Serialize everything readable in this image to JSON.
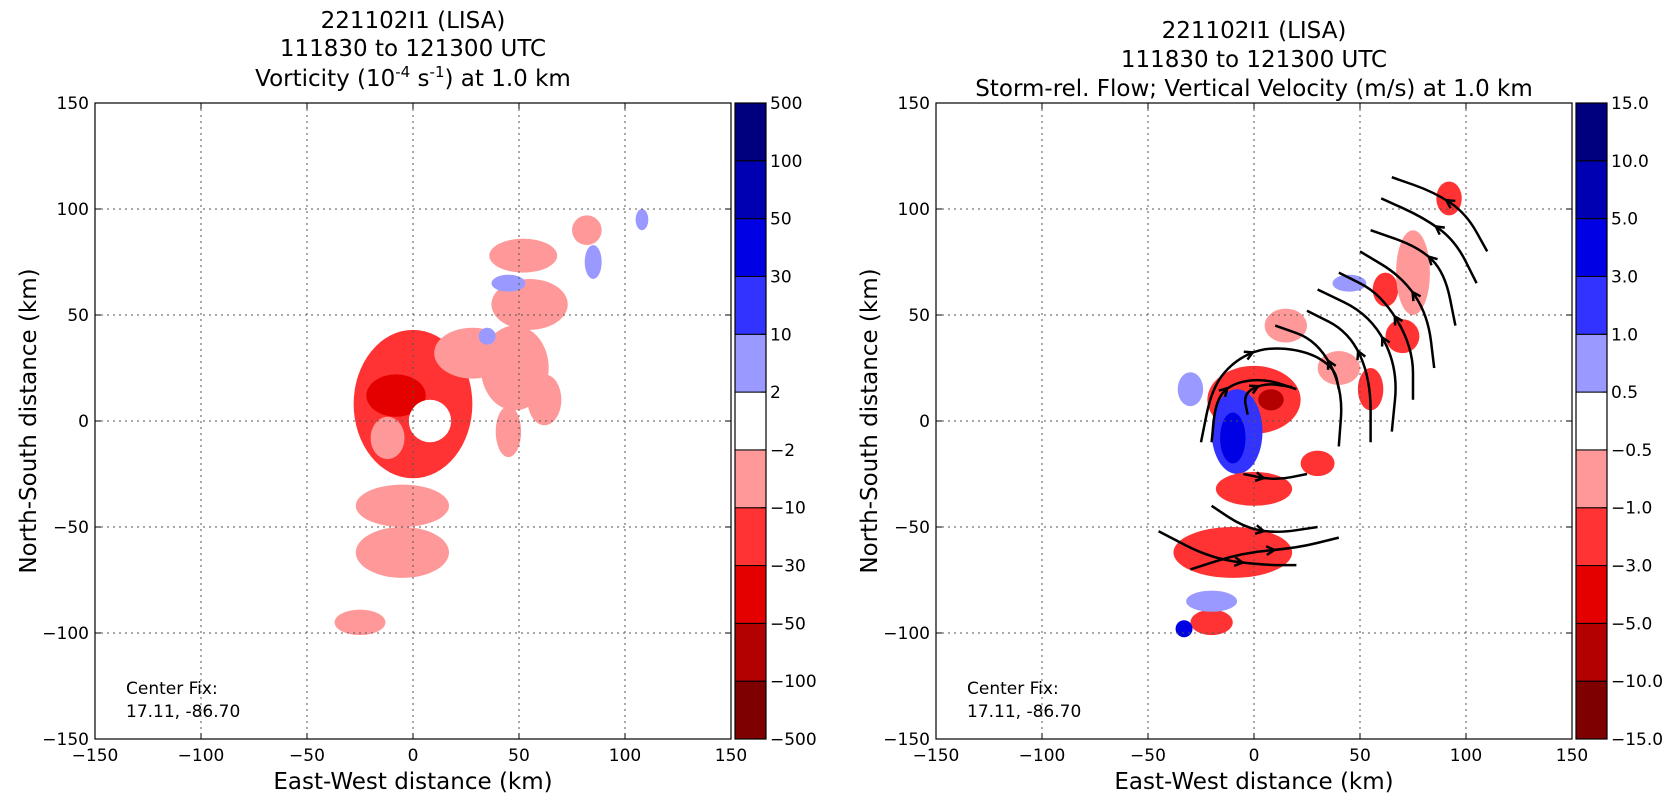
{
  "chart_data": [
    {
      "type": "heatmap",
      "title_lines": [
        "221102I1 (LISA)",
        "111830 to 121300 UTC"
      ],
      "title_var": {
        "pre": "Vorticity (10",
        "exp1": "-4",
        "mid": " s",
        "exp2": "-1",
        "post": ") at 1.0 km"
      },
      "xlabel": "East-West distance (km)",
      "ylabel": "North-South distance (km)",
      "xlim": [
        -150,
        150
      ],
      "ylim": [
        -150,
        150
      ],
      "xticks": [
        -150,
        -100,
        -50,
        0,
        50,
        100,
        150
      ],
      "yticks": [
        -150,
        -100,
        -50,
        0,
        50,
        100,
        150
      ],
      "tick_labels": [
        "−150",
        "−100",
        "−50",
        "0",
        "50",
        "100",
        "150"
      ],
      "grid": true,
      "annotation": [
        "Center Fix:",
        "17.11, -86.70"
      ],
      "colorbar": {
        "levels": [
          "500",
          "100",
          "50",
          "30",
          "10",
          "2",
          "−2",
          "−10",
          "−30",
          "−50",
          "−100",
          "−500"
        ],
        "colors": [
          "#7f0000",
          "#b30000",
          "#e50000",
          "#ff3333",
          "#ff9999",
          "#ffffff",
          "#9999ff",
          "#3333ff",
          "#0000e5",
          "#0000b3",
          "#00007f"
        ]
      },
      "features": [
        {
          "kind": "blob",
          "x": 0,
          "y": 8,
          "rx": 28,
          "ry": 35,
          "level": 3
        },
        {
          "kind": "blob",
          "x": -8,
          "y": 12,
          "rx": 14,
          "ry": 10,
          "level": 2
        },
        {
          "kind": "blob",
          "x": 8,
          "y": 0,
          "rx": 10,
          "ry": 10,
          "level": 5
        },
        {
          "kind": "blob",
          "x": -12,
          "y": -8,
          "rx": 8,
          "ry": 10,
          "level": 4
        },
        {
          "kind": "blob",
          "x": 28,
          "y": 32,
          "rx": 18,
          "ry": 12,
          "level": 4
        },
        {
          "kind": "blob",
          "x": 48,
          "y": 25,
          "rx": 16,
          "ry": 20,
          "level": 4
        },
        {
          "kind": "blob",
          "x": 55,
          "y": 55,
          "rx": 18,
          "ry": 12,
          "level": 4
        },
        {
          "kind": "blob",
          "x": 52,
          "y": 78,
          "rx": 16,
          "ry": 8,
          "level": 4
        },
        {
          "kind": "blob",
          "x": 82,
          "y": 90,
          "rx": 7,
          "ry": 7,
          "level": 4
        },
        {
          "kind": "blob",
          "x": 45,
          "y": -5,
          "rx": 6,
          "ry": 12,
          "level": 4
        },
        {
          "kind": "blob",
          "x": 62,
          "y": 10,
          "rx": 8,
          "ry": 12,
          "level": 4
        },
        {
          "kind": "blob",
          "x": -5,
          "y": -40,
          "rx": 22,
          "ry": 10,
          "level": 4
        },
        {
          "kind": "blob",
          "x": -5,
          "y": -62,
          "rx": 22,
          "ry": 12,
          "level": 4
        },
        {
          "kind": "blob",
          "x": -25,
          "y": -95,
          "rx": 12,
          "ry": 6,
          "level": 4
        },
        {
          "kind": "blob",
          "x": 45,
          "y": 65,
          "rx": 8,
          "ry": 4,
          "level": 6
        },
        {
          "kind": "blob",
          "x": 85,
          "y": 75,
          "rx": 4,
          "ry": 8,
          "level": 6
        },
        {
          "kind": "blob",
          "x": 35,
          "y": 40,
          "rx": 4,
          "ry": 4,
          "level": 6
        },
        {
          "kind": "blob",
          "x": 108,
          "y": 95,
          "rx": 3,
          "ry": 5,
          "level": 6
        }
      ]
    },
    {
      "type": "heatmap",
      "title_lines": [
        "221102I1 (LISA)",
        "111830 to 121300 UTC",
        "Storm-rel. Flow; Vertical Velocity (m/s) at 1.0 km"
      ],
      "xlabel": "East-West distance (km)",
      "ylabel": "North-South distance (km)",
      "xlim": [
        -150,
        150
      ],
      "ylim": [
        -150,
        150
      ],
      "xticks": [
        -150,
        -100,
        -50,
        0,
        50,
        100,
        150
      ],
      "yticks": [
        -150,
        -100,
        -50,
        0,
        50,
        100,
        150
      ],
      "tick_labels": [
        "−150",
        "−100",
        "−50",
        "0",
        "50",
        "100",
        "150"
      ],
      "grid": true,
      "annotation": [
        "Center Fix:",
        "17.11, -86.70"
      ],
      "colorbar": {
        "levels": [
          "15.0",
          "10.0",
          "5.0",
          "3.0",
          "1.0",
          "0.5",
          "−0.5",
          "−1.0",
          "−3.0",
          "−5.0",
          "−10.0",
          "−15.0"
        ],
        "colors": [
          "#7f0000",
          "#b30000",
          "#e50000",
          "#ff3333",
          "#ff9999",
          "#ffffff",
          "#9999ff",
          "#3333ff",
          "#0000e5",
          "#0000b3",
          "#00007f"
        ]
      },
      "features": [
        {
          "kind": "blob",
          "x": 0,
          "y": 10,
          "rx": 22,
          "ry": 16,
          "level": 3
        },
        {
          "kind": "blob",
          "x": 8,
          "y": 10,
          "rx": 6,
          "ry": 5,
          "level": 1
        },
        {
          "kind": "blob",
          "x": -8,
          "y": -5,
          "rx": 12,
          "ry": 20,
          "level": 7
        },
        {
          "kind": "blob",
          "x": -10,
          "y": -8,
          "rx": 6,
          "ry": 12,
          "level": 8
        },
        {
          "kind": "blob",
          "x": 0,
          "y": -32,
          "rx": 18,
          "ry": 8,
          "level": 3
        },
        {
          "kind": "blob",
          "x": -10,
          "y": -62,
          "rx": 28,
          "ry": 12,
          "level": 3
        },
        {
          "kind": "blob",
          "x": 15,
          "y": 45,
          "rx": 10,
          "ry": 8,
          "level": 4
        },
        {
          "kind": "blob",
          "x": 40,
          "y": 25,
          "rx": 10,
          "ry": 8,
          "level": 4
        },
        {
          "kind": "blob",
          "x": 55,
          "y": 15,
          "rx": 6,
          "ry": 10,
          "level": 3
        },
        {
          "kind": "blob",
          "x": 70,
          "y": 40,
          "rx": 8,
          "ry": 8,
          "level": 3
        },
        {
          "kind": "blob",
          "x": 62,
          "y": 62,
          "rx": 6,
          "ry": 8,
          "level": 3
        },
        {
          "kind": "blob",
          "x": 75,
          "y": 70,
          "rx": 8,
          "ry": 20,
          "level": 4
        },
        {
          "kind": "blob",
          "x": 92,
          "y": 105,
          "rx": 6,
          "ry": 8,
          "level": 3
        },
        {
          "kind": "blob",
          "x": -20,
          "y": -95,
          "rx": 10,
          "ry": 6,
          "level": 3
        },
        {
          "kind": "blob",
          "x": 30,
          "y": -20,
          "rx": 8,
          "ry": 6,
          "level": 3
        },
        {
          "kind": "blob",
          "x": -20,
          "y": -85,
          "rx": 12,
          "ry": 5,
          "level": 6
        },
        {
          "kind": "blob",
          "x": -30,
          "y": 15,
          "rx": 6,
          "ry": 8,
          "level": 6
        },
        {
          "kind": "blob",
          "x": -33,
          "y": -98,
          "rx": 4,
          "ry": 4,
          "level": 8
        },
        {
          "kind": "blob",
          "x": 45,
          "y": 65,
          "rx": 8,
          "ry": 4,
          "level": 6
        }
      ],
      "streamlines": [
        {
          "points": [
            [
              -3,
              3
            ],
            [
              -5,
              13
            ],
            [
              5,
              18
            ],
            [
              18,
              16
            ]
          ]
        },
        {
          "points": [
            [
              -20,
              -10
            ],
            [
              -18,
              10
            ],
            [
              -10,
              18
            ],
            [
              5,
              20
            ],
            [
              20,
              15
            ]
          ]
        },
        {
          "points": [
            [
              -25,
              -10
            ],
            [
              -20,
              15
            ],
            [
              -10,
              28
            ],
            [
              5,
              35
            ],
            [
              25,
              33
            ],
            [
              38,
              25
            ],
            [
              40,
              15
            ]
          ]
        },
        {
          "points": [
            [
              -30,
              -70
            ],
            [
              -5,
              -62
            ],
            [
              20,
              -60
            ],
            [
              40,
              -55
            ]
          ]
        },
        {
          "points": [
            [
              -45,
              -52
            ],
            [
              -20,
              -65
            ],
            [
              5,
              -68
            ],
            [
              20,
              -68
            ]
          ]
        },
        {
          "points": [
            [
              -20,
              -40
            ],
            [
              -5,
              -50
            ],
            [
              10,
              -53
            ],
            [
              30,
              -50
            ]
          ]
        },
        {
          "points": [
            [
              -5,
              -25
            ],
            [
              10,
              -28
            ],
            [
              25,
              -25
            ]
          ]
        },
        {
          "points": [
            [
              40,
              -12
            ],
            [
              42,
              15
            ],
            [
              30,
              38
            ],
            [
              10,
              45
            ]
          ]
        },
        {
          "points": [
            [
              55,
              -10
            ],
            [
              55,
              20
            ],
            [
              45,
              42
            ],
            [
              25,
              52
            ]
          ]
        },
        {
          "points": [
            [
              65,
              -5
            ],
            [
              68,
              25
            ],
            [
              55,
              50
            ],
            [
              30,
              62
            ]
          ]
        },
        {
          "points": [
            [
              75,
              10
            ],
            [
              75,
              35
            ],
            [
              60,
              60
            ],
            [
              40,
              70
            ]
          ]
        },
        {
          "points": [
            [
              85,
              25
            ],
            [
              82,
              50
            ],
            [
              70,
              68
            ],
            [
              50,
              80
            ]
          ]
        },
        {
          "points": [
            [
              95,
              45
            ],
            [
              90,
              70
            ],
            [
              78,
              82
            ],
            [
              55,
              90
            ]
          ]
        },
        {
          "points": [
            [
              105,
              65
            ],
            [
              95,
              85
            ],
            [
              80,
              96
            ],
            [
              60,
              105
            ]
          ]
        },
        {
          "points": [
            [
              110,
              80
            ],
            [
              100,
              98
            ],
            [
              85,
              108
            ],
            [
              65,
              115
            ]
          ]
        }
      ]
    }
  ]
}
